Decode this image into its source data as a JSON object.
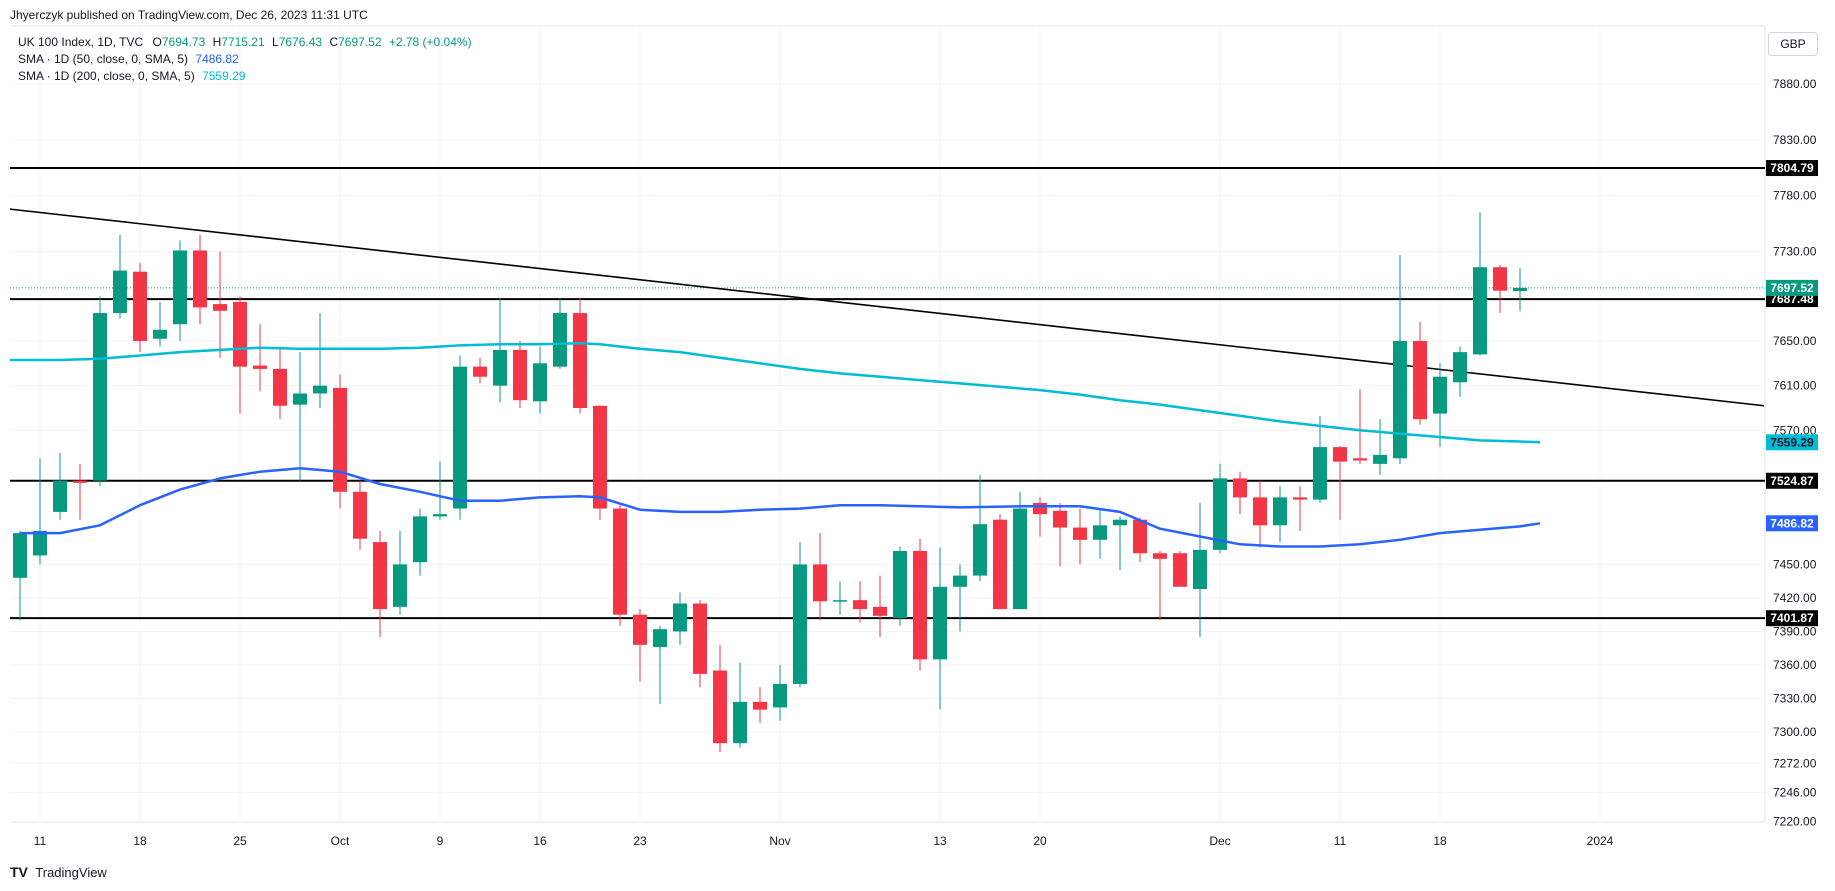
{
  "header": {
    "attribution": "Jhyerczyk published on TradingView.com, Dec 26, 2023 11:31 UTC"
  },
  "legend": {
    "symbol": "UK 100 Index, 1D, TVC",
    "ohlc": {
      "o_label": "O",
      "o_value": "7694.73",
      "h_label": "H",
      "h_value": "7715.21",
      "l_label": "L",
      "l_value": "7676.43",
      "c_label": "C",
      "c_value": "7697.52",
      "change": "+2.78 (+0.04%)"
    },
    "sma50": {
      "label": "SMA · 1D (50, close, 0, SMA, 5)",
      "value": "7486.82",
      "color": "#2962ff"
    },
    "sma200": {
      "label": "SMA · 1D (200, close, 0, SMA, 5)",
      "value": "7559.29",
      "color": "#00bcd4"
    }
  },
  "currency": "GBP",
  "footer": {
    "logo_text": "TradingView"
  },
  "colors": {
    "up": "#089981",
    "down": "#f23645",
    "grid": "#f0f3fa",
    "hline": "#000000"
  },
  "chart_data": {
    "type": "candlestick",
    "y_axis": {
      "ticks": [
        "7880.00",
        "7830.00",
        "7780.00",
        "7730.00",
        "7650.00",
        "7610.00",
        "7570.00",
        "7450.00",
        "7420.00",
        "7390.00",
        "7360.00",
        "7330.00",
        "7300.00",
        "7272.00",
        "7246.00",
        "7220.00"
      ],
      "range": [
        7220,
        7910
      ]
    },
    "x_axis": {
      "ticks": [
        {
          "i": 1,
          "label": "11"
        },
        {
          "i": 6,
          "label": "18"
        },
        {
          "i": 11,
          "label": "25"
        },
        {
          "i": 16,
          "label": "Oct"
        },
        {
          "i": 21,
          "label": "9"
        },
        {
          "i": 26,
          "label": "16"
        },
        {
          "i": 31,
          "label": "23"
        },
        {
          "i": 38,
          "label": "Nov"
        },
        {
          "i": 46,
          "label": "13"
        },
        {
          "i": 51,
          "label": "20"
        },
        {
          "i": 60,
          "label": "Dec"
        },
        {
          "i": 66,
          "label": "11"
        },
        {
          "i": 71,
          "label": "18"
        },
        {
          "i": 79,
          "label": "2024"
        }
      ]
    },
    "horizontal_lines": [
      {
        "value": 7804.79,
        "label": "7804.79"
      },
      {
        "value": 7687.48,
        "label": "7687.48"
      },
      {
        "value": 7524.87,
        "label": "7524.87"
      },
      {
        "value": 7401.87,
        "label": "7401.87"
      }
    ],
    "last_price": {
      "value": 7697.52,
      "label": "7697.52"
    },
    "sma50_last": {
      "value": 7486.82,
      "label": "7486.82"
    },
    "sma200_last": {
      "value": 7559.29,
      "label": "7559.29"
    },
    "trendline": {
      "start": {
        "i": -0.5,
        "value": 7768
      },
      "end": {
        "i": 87.2,
        "value": 7592
      }
    },
    "candles": [
      {
        "o": 7438,
        "h": 7480,
        "l": 7400,
        "c": 7478
      },
      {
        "o": 7458,
        "h": 7545,
        "l": 7450,
        "c": 7480
      },
      {
        "o": 7497,
        "h": 7550,
        "l": 7490,
        "c": 7525
      },
      {
        "o": 7525,
        "h": 7540,
        "l": 7490,
        "c": 7523
      },
      {
        "o": 7525,
        "h": 7690,
        "l": 7520,
        "c": 7675
      },
      {
        "o": 7675,
        "h": 7745,
        "l": 7670,
        "c": 7713
      },
      {
        "o": 7712,
        "h": 7720,
        "l": 7640,
        "c": 7650
      },
      {
        "o": 7652,
        "h": 7685,
        "l": 7645,
        "c": 7660
      },
      {
        "o": 7665,
        "h": 7740,
        "l": 7650,
        "c": 7731
      },
      {
        "o": 7731,
        "h": 7745,
        "l": 7665,
        "c": 7680
      },
      {
        "o": 7683,
        "h": 7730,
        "l": 7635,
        "c": 7677
      },
      {
        "o": 7685,
        "h": 7690,
        "l": 7585,
        "c": 7627
      },
      {
        "o": 7628,
        "h": 7665,
        "l": 7605,
        "c": 7625
      },
      {
        "o": 7625,
        "h": 7645,
        "l": 7580,
        "c": 7592
      },
      {
        "o": 7593,
        "h": 7640,
        "l": 7525,
        "c": 7603
      },
      {
        "o": 7603,
        "h": 7675,
        "l": 7590,
        "c": 7610
      },
      {
        "o": 7608,
        "h": 7620,
        "l": 7500,
        "c": 7515
      },
      {
        "o": 7515,
        "h": 7525,
        "l": 7463,
        "c": 7473
      },
      {
        "o": 7470,
        "h": 7480,
        "l": 7385,
        "c": 7410
      },
      {
        "o": 7412,
        "h": 7480,
        "l": 7405,
        "c": 7450
      },
      {
        "o": 7452,
        "h": 7500,
        "l": 7440,
        "c": 7493
      },
      {
        "o": 7493,
        "h": 7542,
        "l": 7490,
        "c": 7495
      },
      {
        "o": 7500,
        "h": 7637,
        "l": 7490,
        "c": 7627
      },
      {
        "o": 7627,
        "h": 7635,
        "l": 7612,
        "c": 7618
      },
      {
        "o": 7610,
        "h": 7688,
        "l": 7595,
        "c": 7642
      },
      {
        "o": 7642,
        "h": 7650,
        "l": 7590,
        "c": 7597
      },
      {
        "o": 7596,
        "h": 7645,
        "l": 7585,
        "c": 7630
      },
      {
        "o": 7627,
        "h": 7688,
        "l": 7625,
        "c": 7675
      },
      {
        "o": 7675,
        "h": 7688,
        "l": 7585,
        "c": 7590
      },
      {
        "o": 7592,
        "h": 7592,
        "l": 7490,
        "c": 7500
      },
      {
        "o": 7500,
        "h": 7504,
        "l": 7395,
        "c": 7405
      },
      {
        "o": 7405,
        "h": 7410,
        "l": 7345,
        "c": 7378
      },
      {
        "o": 7376,
        "h": 7395,
        "l": 7325,
        "c": 7392
      },
      {
        "o": 7390,
        "h": 7425,
        "l": 7378,
        "c": 7415
      },
      {
        "o": 7415,
        "h": 7418,
        "l": 7340,
        "c": 7352
      },
      {
        "o": 7355,
        "h": 7378,
        "l": 7282,
        "c": 7290
      },
      {
        "o": 7290,
        "h": 7362,
        "l": 7286,
        "c": 7327
      },
      {
        "o": 7327,
        "h": 7340,
        "l": 7308,
        "c": 7320
      },
      {
        "o": 7322,
        "h": 7360,
        "l": 7310,
        "c": 7343
      },
      {
        "o": 7343,
        "h": 7470,
        "l": 7340,
        "c": 7450
      },
      {
        "o": 7450,
        "h": 7478,
        "l": 7400,
        "c": 7417
      },
      {
        "o": 7417,
        "h": 7435,
        "l": 7405,
        "c": 7418
      },
      {
        "o": 7418,
        "h": 7435,
        "l": 7398,
        "c": 7410
      },
      {
        "o": 7412,
        "h": 7440,
        "l": 7385,
        "c": 7404
      },
      {
        "o": 7402,
        "h": 7466,
        "l": 7395,
        "c": 7462
      },
      {
        "o": 7462,
        "h": 7473,
        "l": 7355,
        "c": 7365
      },
      {
        "o": 7365,
        "h": 7465,
        "l": 7320,
        "c": 7430
      },
      {
        "o": 7430,
        "h": 7450,
        "l": 7390,
        "c": 7440
      },
      {
        "o": 7440,
        "h": 7530,
        "l": 7435,
        "c": 7486
      },
      {
        "o": 7490,
        "h": 7495,
        "l": 7410,
        "c": 7410
      },
      {
        "o": 7410,
        "h": 7515,
        "l": 7410,
        "c": 7500
      },
      {
        "o": 7505,
        "h": 7510,
        "l": 7475,
        "c": 7495
      },
      {
        "o": 7498,
        "h": 7505,
        "l": 7448,
        "c": 7483
      },
      {
        "o": 7483,
        "h": 7500,
        "l": 7450,
        "c": 7472
      },
      {
        "o": 7472,
        "h": 7500,
        "l": 7455,
        "c": 7485
      },
      {
        "o": 7485,
        "h": 7493,
        "l": 7445,
        "c": 7490
      },
      {
        "o": 7490,
        "h": 7492,
        "l": 7452,
        "c": 7460
      },
      {
        "o": 7460,
        "h": 7462,
        "l": 7400,
        "c": 7455
      },
      {
        "o": 7460,
        "h": 7462,
        "l": 7430,
        "c": 7430
      },
      {
        "o": 7428,
        "h": 7505,
        "l": 7385,
        "c": 7463
      },
      {
        "o": 7463,
        "h": 7540,
        "l": 7460,
        "c": 7527
      },
      {
        "o": 7527,
        "h": 7533,
        "l": 7495,
        "c": 7510
      },
      {
        "o": 7510,
        "h": 7525,
        "l": 7465,
        "c": 7485
      },
      {
        "o": 7485,
        "h": 7520,
        "l": 7470,
        "c": 7510
      },
      {
        "o": 7510,
        "h": 7520,
        "l": 7480,
        "c": 7508
      },
      {
        "o": 7508,
        "h": 7583,
        "l": 7505,
        "c": 7555
      },
      {
        "o": 7555,
        "h": 7556,
        "l": 7490,
        "c": 7542
      },
      {
        "o": 7545,
        "h": 7607,
        "l": 7540,
        "c": 7543
      },
      {
        "o": 7540,
        "h": 7580,
        "l": 7530,
        "c": 7548
      },
      {
        "o": 7545,
        "h": 7727,
        "l": 7540,
        "c": 7650
      },
      {
        "o": 7650,
        "h": 7667,
        "l": 7575,
        "c": 7580
      },
      {
        "o": 7585,
        "h": 7630,
        "l": 7555,
        "c": 7618
      },
      {
        "o": 7613,
        "h": 7645,
        "l": 7600,
        "c": 7640
      },
      {
        "o": 7638,
        "h": 7765,
        "l": 7637,
        "c": 7716
      },
      {
        "o": 7716,
        "h": 7718,
        "l": 7675,
        "c": 7695
      },
      {
        "o": 7694.73,
        "h": 7715.21,
        "l": 7676.43,
        "c": 7697.52
      }
    ],
    "sma50": [
      [
        0,
        7478
      ],
      [
        2,
        7478
      ],
      [
        4,
        7485
      ],
      [
        6,
        7503
      ],
      [
        8,
        7517
      ],
      [
        10,
        7527
      ],
      [
        12,
        7533
      ],
      [
        14,
        7536
      ],
      [
        16,
        7533
      ],
      [
        18,
        7522
      ],
      [
        20,
        7515
      ],
      [
        22,
        7507
      ],
      [
        24,
        7507
      ],
      [
        26,
        7510
      ],
      [
        28,
        7511
      ],
      [
        29,
        7510
      ],
      [
        31,
        7499
      ],
      [
        33,
        7497
      ],
      [
        35,
        7497
      ],
      [
        37,
        7499
      ],
      [
        39,
        7500
      ],
      [
        41,
        7503
      ],
      [
        43,
        7503
      ],
      [
        45,
        7502
      ],
      [
        47,
        7501
      ],
      [
        50,
        7502
      ],
      [
        53,
        7502
      ],
      [
        55,
        7497
      ],
      [
        57,
        7482
      ],
      [
        59,
        7475
      ],
      [
        61,
        7468
      ],
      [
        63,
        7466
      ],
      [
        65,
        7466
      ],
      [
        67,
        7468
      ],
      [
        69,
        7472
      ],
      [
        71,
        7478
      ],
      [
        73,
        7481
      ],
      [
        75,
        7484
      ],
      [
        76,
        7486.82
      ]
    ],
    "sma200": [
      [
        -0.5,
        7633
      ],
      [
        2,
        7633
      ],
      [
        4,
        7634
      ],
      [
        6,
        7637
      ],
      [
        8,
        7640
      ],
      [
        10,
        7642
      ],
      [
        12,
        7644
      ],
      [
        14,
        7643
      ],
      [
        16,
        7643
      ],
      [
        18,
        7643
      ],
      [
        20,
        7644
      ],
      [
        22,
        7646
      ],
      [
        24,
        7647
      ],
      [
        26,
        7647
      ],
      [
        28,
        7648
      ],
      [
        29,
        7647
      ],
      [
        31,
        7643
      ],
      [
        33,
        7640
      ],
      [
        35,
        7635
      ],
      [
        37,
        7630
      ],
      [
        39,
        7625
      ],
      [
        41,
        7621
      ],
      [
        43,
        7618
      ],
      [
        45,
        7615
      ],
      [
        47,
        7612
      ],
      [
        49,
        7609
      ],
      [
        51,
        7606
      ],
      [
        53,
        7602
      ],
      [
        55,
        7597
      ],
      [
        57,
        7593
      ],
      [
        59,
        7588
      ],
      [
        61,
        7583
      ],
      [
        63,
        7578
      ],
      [
        65,
        7574
      ],
      [
        67,
        7570
      ],
      [
        69,
        7567
      ],
      [
        71,
        7564
      ],
      [
        73,
        7561
      ],
      [
        75,
        7560
      ],
      [
        76,
        7559.29
      ]
    ]
  }
}
